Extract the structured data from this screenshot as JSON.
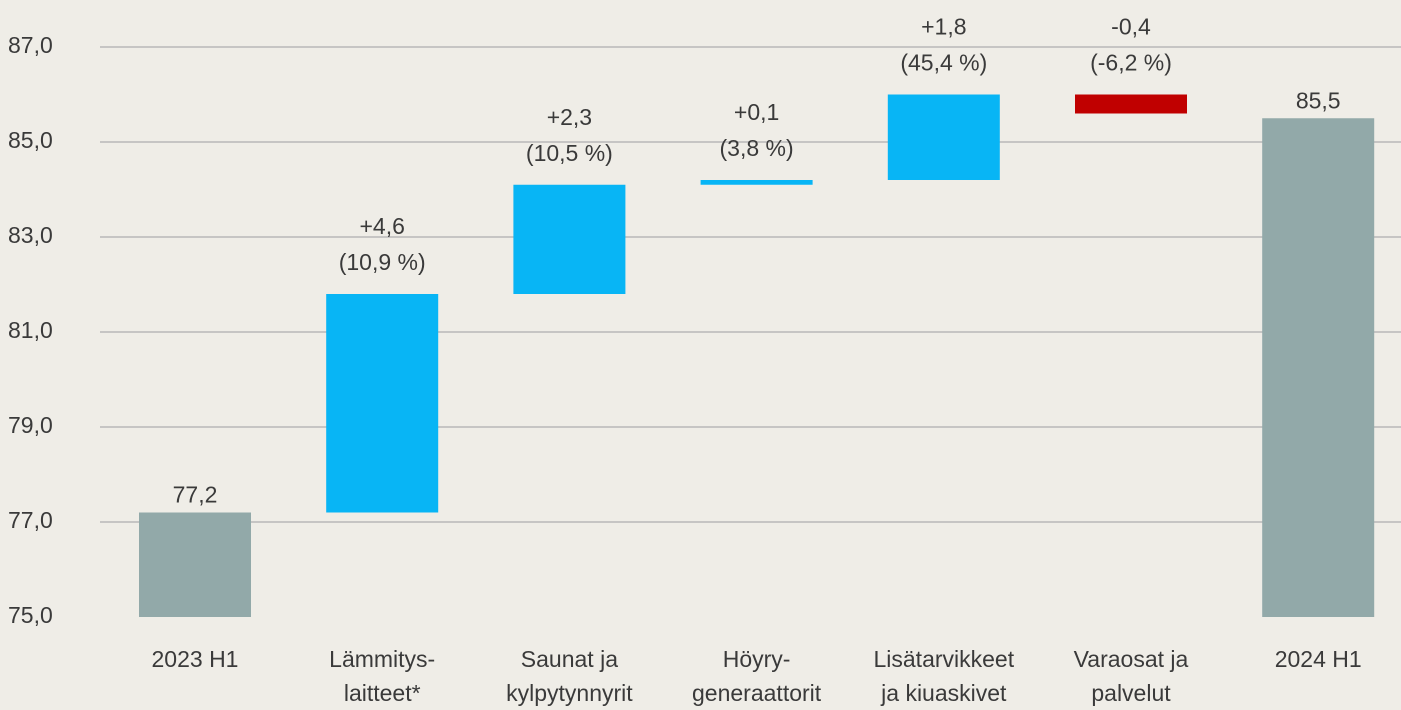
{
  "chart_data": {
    "type": "waterfall",
    "categories": [
      [
        "2023 H1"
      ],
      [
        "Lämmitys-",
        "laitteet*"
      ],
      [
        "Saunat ja",
        "kylpytynnyrit"
      ],
      [
        "Höyry-",
        "generaattorit"
      ],
      [
        "Lisätarvikkeet",
        "ja kiuaskivet"
      ],
      [
        "Varaosat ja",
        "palvelut"
      ],
      [
        "2024 H1"
      ]
    ],
    "measures": [
      "absolute",
      "relative",
      "relative",
      "relative",
      "relative",
      "relative",
      "total"
    ],
    "values": [
      77.2,
      4.6,
      2.3,
      0.1,
      1.8,
      -0.4,
      85.5
    ],
    "value_labels": [
      "77,2",
      "+4,6",
      "+2,3",
      "+0,1",
      "+1,8",
      "-0,4",
      "85,5"
    ],
    "growth_labels": [
      null,
      "(10,9 %)",
      "(10,5 %)",
      "(3,8 %)",
      "(45,4 %)",
      "(-6,2 %)",
      null
    ],
    "colors": {
      "total": "#92a9a9",
      "increase": "#08b5f5",
      "decrease": "#c00000"
    },
    "ylim": [
      75,
      87
    ],
    "yticks": [
      {
        "value": 75,
        "label": "75,0"
      },
      {
        "value": 77,
        "label": "77,0"
      },
      {
        "value": 79,
        "label": "79,0"
      },
      {
        "value": 81,
        "label": "81,0"
      },
      {
        "value": 83,
        "label": "83,0"
      },
      {
        "value": 85,
        "label": "85,0"
      },
      {
        "value": 87,
        "label": "87,0"
      }
    ],
    "grid": true
  }
}
